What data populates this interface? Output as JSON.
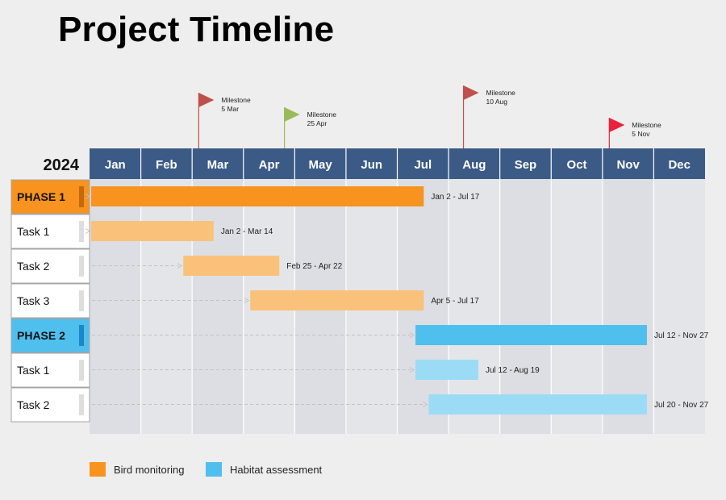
{
  "title": "Project Timeline",
  "colors": {
    "header": "#3c5a86",
    "phase1": "#f7931e",
    "task1": "#fac17b",
    "phase2": "#4fbfee",
    "task2": "#9cdbf6",
    "grid_odd": "#dcdee3",
    "grid_even": "#e4e5e9"
  },
  "legend": [
    {
      "label": "Bird monitoring",
      "color": "#f7931e"
    },
    {
      "label": "Habitat assessment",
      "color": "#4fbfee"
    }
  ],
  "chart_data": {
    "type": "gantt",
    "title": "Project Timeline",
    "year": "2024",
    "months": [
      "Jan",
      "Feb",
      "Mar",
      "Apr",
      "May",
      "Jun",
      "Jul",
      "Aug",
      "Sep",
      "Oct",
      "Nov",
      "Dec"
    ],
    "rows": [
      {
        "label": "PHASE 1",
        "kind": "phase",
        "group": "bird",
        "start": "2024-01-02",
        "end": "2024-07-17",
        "range_label": "Jan 2 - Jul 17"
      },
      {
        "label": "Task 1",
        "kind": "task",
        "group": "bird",
        "start": "2024-01-02",
        "end": "2024-03-14",
        "range_label": "Jan 2 - Mar 14"
      },
      {
        "label": "Task 2",
        "kind": "task",
        "group": "bird",
        "start": "2024-02-25",
        "end": "2024-04-22",
        "range_label": "Feb 25 - Apr 22"
      },
      {
        "label": "Task 3",
        "kind": "task",
        "group": "bird",
        "start": "2024-04-05",
        "end": "2024-07-17",
        "range_label": "Apr 5 - Jul 17"
      },
      {
        "label": "PHASE 2",
        "kind": "phase",
        "group": "habitat",
        "start": "2024-07-12",
        "end": "2024-11-27",
        "range_label": "Jul 12 - Nov 27"
      },
      {
        "label": "Task 1",
        "kind": "task",
        "group": "habitat",
        "start": "2024-07-12",
        "end": "2024-08-19",
        "range_label": "Jul 12 - Aug 19"
      },
      {
        "label": "Task 2",
        "kind": "task",
        "group": "habitat",
        "start": "2024-07-20",
        "end": "2024-11-27",
        "range_label": "Jul 20 - Nov 27"
      }
    ],
    "milestones": [
      {
        "label": "Milestone",
        "date_label": "5 Mar",
        "date": "2024-03-05",
        "color": "#c0504d",
        "level": "high"
      },
      {
        "label": "Milestone",
        "date_label": "25 Apr",
        "date": "2024-04-25",
        "color": "#9bbb59",
        "level": "mid"
      },
      {
        "label": "Milestone",
        "date_label": "10 Aug",
        "date": "2024-08-10",
        "color": "#c0504d",
        "level": "top"
      },
      {
        "label": "Milestone",
        "date_label": "5 Nov",
        "date": "2024-11-05",
        "color": "#e8233c",
        "level": "low"
      }
    ]
  }
}
